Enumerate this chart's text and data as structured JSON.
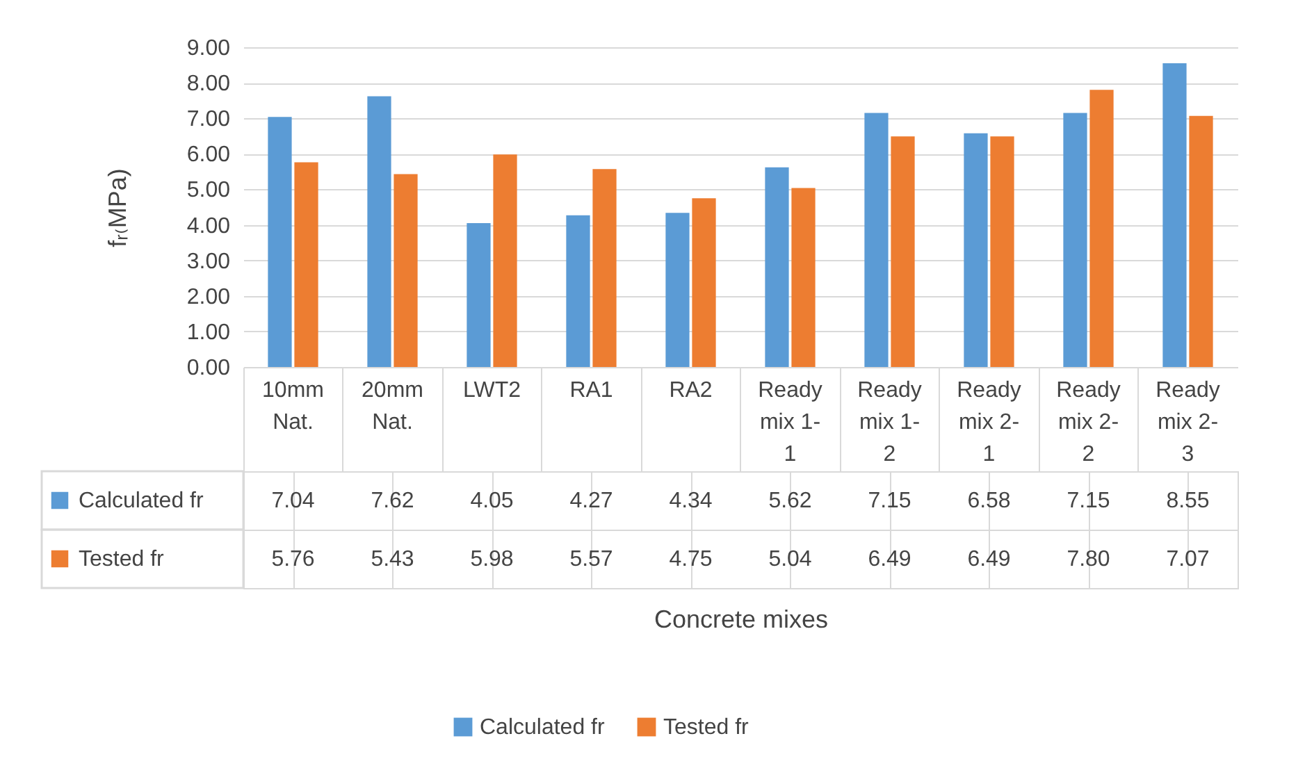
{
  "chart_data": {
    "type": "bar",
    "annotations": [
      "Concrete mixes"
    ],
    "ylabel": "fᵣ₍MPa)",
    "categories": [
      "10mm Nat.",
      "20mm Nat.",
      "LWT2",
      "RA1",
      "RA2",
      "Ready mix 1-1",
      "Ready mix 1-2",
      "Ready mix 2-1",
      "Ready mix 2-2",
      "Ready mix 2-3"
    ],
    "series": [
      {
        "name": "Calculated fr",
        "color": "#5b9bd5",
        "values": [
          7.04,
          7.62,
          4.05,
          4.27,
          4.34,
          5.62,
          7.15,
          6.58,
          7.15,
          8.55
        ],
        "value_labels": [
          "7.04",
          "7.62",
          "4.05",
          "4.27",
          "4.34",
          "5.62",
          "7.15",
          "6.58",
          "7.15",
          "8.55"
        ]
      },
      {
        "name": "Tested fr",
        "color": "#ed7d31",
        "values": [
          5.76,
          5.43,
          5.98,
          5.57,
          4.75,
          5.04,
          6.49,
          6.49,
          7.8,
          7.07
        ],
        "value_labels": [
          "5.76",
          "5.43",
          "5.98",
          "5.57",
          "4.75",
          "5.04",
          "6.49",
          "6.49",
          "7.80",
          "7.07"
        ]
      }
    ],
    "ylim": [
      0,
      9
    ],
    "yticks": [
      {
        "value": 0,
        "label": "0.00"
      },
      {
        "value": 1,
        "label": "1.00"
      },
      {
        "value": 2,
        "label": "2.00"
      },
      {
        "value": 3,
        "label": "3.00"
      },
      {
        "value": 4,
        "label": "4.00"
      },
      {
        "value": 5,
        "label": "5.00"
      },
      {
        "value": 6,
        "label": "6.00"
      },
      {
        "value": 7,
        "label": "7.00"
      },
      {
        "value": 8,
        "label": "8.00"
      },
      {
        "value": 9,
        "label": "9.00"
      }
    ],
    "grid": "y",
    "legend": "bottom"
  }
}
